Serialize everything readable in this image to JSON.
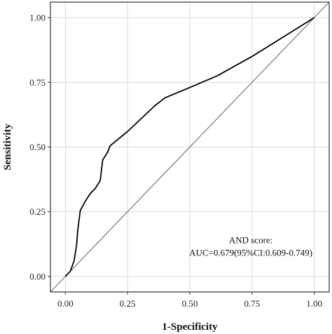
{
  "chart_data": {
    "type": "line",
    "xlabel": "1-Specificity",
    "ylabel": "Sensitivity",
    "xlim": [
      -0.06,
      1.06
    ],
    "ylim": [
      -0.06,
      1.06
    ],
    "x_ticks": [
      0.0,
      0.25,
      0.5,
      0.75,
      1.0
    ],
    "y_ticks": [
      0.0,
      0.25,
      0.5,
      0.75,
      1.0
    ],
    "x_tick_labels": [
      "0.00",
      "0.25",
      "0.50",
      "0.75",
      "1.00"
    ],
    "y_tick_labels": [
      "0.00",
      "0.25",
      "0.50",
      "0.75",
      "1.00"
    ],
    "grid": true,
    "series": [
      {
        "x": [
          0.0,
          0.02,
          0.035,
          0.045,
          0.05,
          0.06,
          0.08,
          0.1,
          0.12,
          0.14,
          0.15,
          0.17,
          0.18,
          0.25,
          0.36,
          0.4,
          0.5,
          0.61,
          0.75,
          1.0
        ],
        "y": [
          0.0,
          0.02,
          0.06,
          0.12,
          0.18,
          0.255,
          0.29,
          0.32,
          0.34,
          0.37,
          0.45,
          0.48,
          0.505,
          0.56,
          0.66,
          0.69,
          0.73,
          0.775,
          0.85,
          1.0
        ],
        "color": "#000000"
      }
    ],
    "reference_line": {
      "x": [
        -0.06,
        1.06
      ],
      "y": [
        -0.06,
        1.06
      ],
      "color": "#777777"
    },
    "annotation": {
      "lines": [
        "AND score:",
        "AUC=0.679(95%CI:0.609-0.749)"
      ],
      "anchor_x": 0.745,
      "anchor_y": 0.128
    },
    "colors": {
      "panel_border": "#333333",
      "grid": "#d9d9d9",
      "background": "#ffffff"
    }
  }
}
